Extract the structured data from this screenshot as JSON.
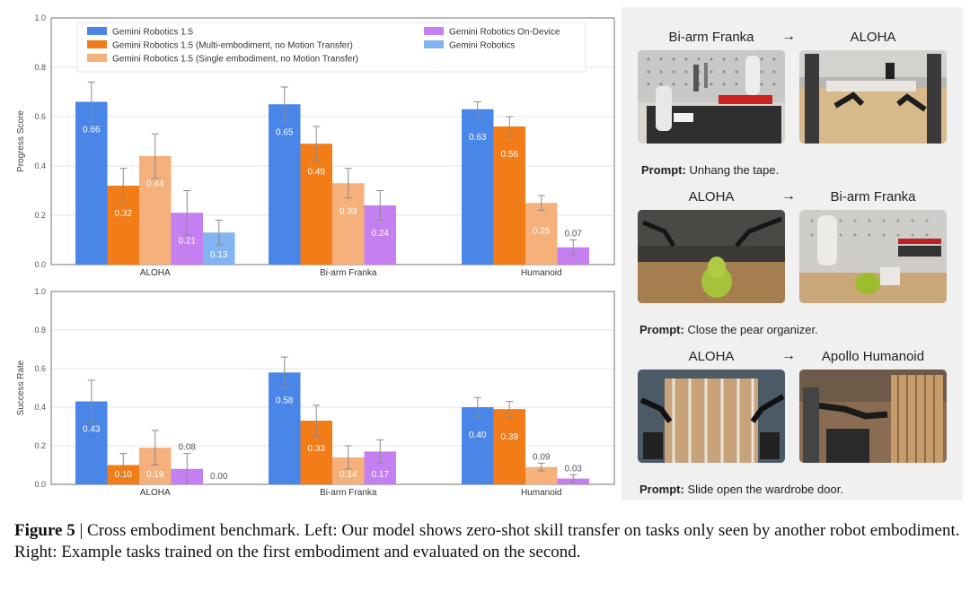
{
  "chart_data": [
    {
      "type": "bar",
      "ylabel": "Progress Score",
      "ylim": [
        0,
        1.0
      ],
      "yticks": [
        "0.0",
        "0.2",
        "0.4",
        "0.6",
        "0.8",
        "1.0"
      ],
      "categories": [
        "ALOHA",
        "Bi-arm Franka",
        "Humanoid"
      ],
      "legend_position": "top-left",
      "series": [
        {
          "name": "Gemini Robotics 1.5",
          "color": "#4a86e8",
          "values": [
            0.66,
            0.65,
            0.63
          ],
          "labels": [
            "0.66",
            "0.65",
            "0.63"
          ],
          "err": [
            0.08,
            0.07,
            0.03
          ]
        },
        {
          "name": "Gemini Robotics 1.5 (Multi-embodiment, no Motion Transfer)",
          "color": "#f27c17",
          "values": [
            0.32,
            0.49,
            0.56
          ],
          "labels": [
            "0.32",
            "0.49",
            "0.56"
          ],
          "err": [
            0.07,
            0.07,
            0.04
          ]
        },
        {
          "name": "Gemini Robotics 1.5 (Single embodiment, no Motion Transfer)",
          "color": "#f5b07c",
          "values": [
            0.44,
            0.33,
            0.25
          ],
          "labels": [
            "0.44",
            "0.33",
            "0.25"
          ],
          "err": [
            0.09,
            0.06,
            0.03
          ]
        },
        {
          "name": "Gemini Robotics On-Device",
          "color": "#c47ff0",
          "values": [
            0.21,
            0.24,
            0.07
          ],
          "labels": [
            "0.21",
            "0.24",
            "0.07"
          ],
          "err": [
            0.09,
            0.06,
            0.03
          ]
        },
        {
          "name": "Gemini Robotics",
          "color": "#83b4f2",
          "values": [
            0.13,
            null,
            null
          ],
          "labels": [
            "0.13",
            "",
            ""
          ],
          "err": [
            0.05,
            0,
            0
          ]
        }
      ]
    },
    {
      "type": "bar",
      "ylabel": "Success Rate",
      "ylim": [
        0,
        1.0
      ],
      "yticks": [
        "0.0",
        "0.2",
        "0.4",
        "0.6",
        "0.8",
        "1.0"
      ],
      "categories": [
        "ALOHA",
        "Bi-arm Franka",
        "Humanoid"
      ],
      "series": [
        {
          "name": "Gemini Robotics 1.5",
          "color": "#4a86e8",
          "values": [
            0.43,
            0.58,
            0.4
          ],
          "labels": [
            "0.43",
            "0.58",
            "0.40"
          ],
          "err": [
            0.11,
            0.08,
            0.05
          ]
        },
        {
          "name": "Gemini Robotics 1.5 (Multi-embodiment, no Motion Transfer)",
          "color": "#f27c17",
          "values": [
            0.1,
            0.33,
            0.39
          ],
          "labels": [
            "0.10",
            "0.33",
            "0.39"
          ],
          "err": [
            0.06,
            0.08,
            0.04
          ]
        },
        {
          "name": "Gemini Robotics 1.5 (Single embodiment, no Motion Transfer)",
          "color": "#f5b07c",
          "values": [
            0.19,
            0.14,
            0.09
          ],
          "labels": [
            "0.19",
            "0.14",
            "0.09"
          ],
          "err": [
            0.09,
            0.06,
            0.02
          ]
        },
        {
          "name": "Gemini Robotics On-Device",
          "color": "#c47ff0",
          "values": [
            0.08,
            0.17,
            0.03
          ],
          "labels": [
            "0.08",
            "0.17",
            "0.03"
          ],
          "err": [
            0.08,
            0.06,
            0.02
          ]
        },
        {
          "name": "Gemini Robotics",
          "color": "#83b4f2",
          "values": [
            0.0,
            null,
            null
          ],
          "labels": [
            "0.00",
            "",
            ""
          ],
          "err": [
            0,
            0,
            0
          ]
        }
      ]
    }
  ],
  "examples": [
    {
      "from": "Bi-arm Franka",
      "arrow": "→",
      "to": "ALOHA",
      "prompt_label": "Prompt:",
      "prompt_text": "Unhang the tape."
    },
    {
      "from": "ALOHA",
      "arrow": "→",
      "to": "Bi-arm Franka",
      "prompt_label": "Prompt:",
      "prompt_text": "Close the pear organizer."
    },
    {
      "from": "ALOHA",
      "arrow": "→",
      "to": "Apollo Humanoid",
      "prompt_label": "Prompt:",
      "prompt_text": "Slide open the wardrobe door."
    }
  ],
  "caption": {
    "label": "Figure 5",
    "separator": "|",
    "text": "Cross embodiment benchmark. Left: Our model shows zero-shot skill transfer on tasks only seen by another robot embodiment. Right: Example tasks trained on the first embodiment and evaluated on the second."
  }
}
